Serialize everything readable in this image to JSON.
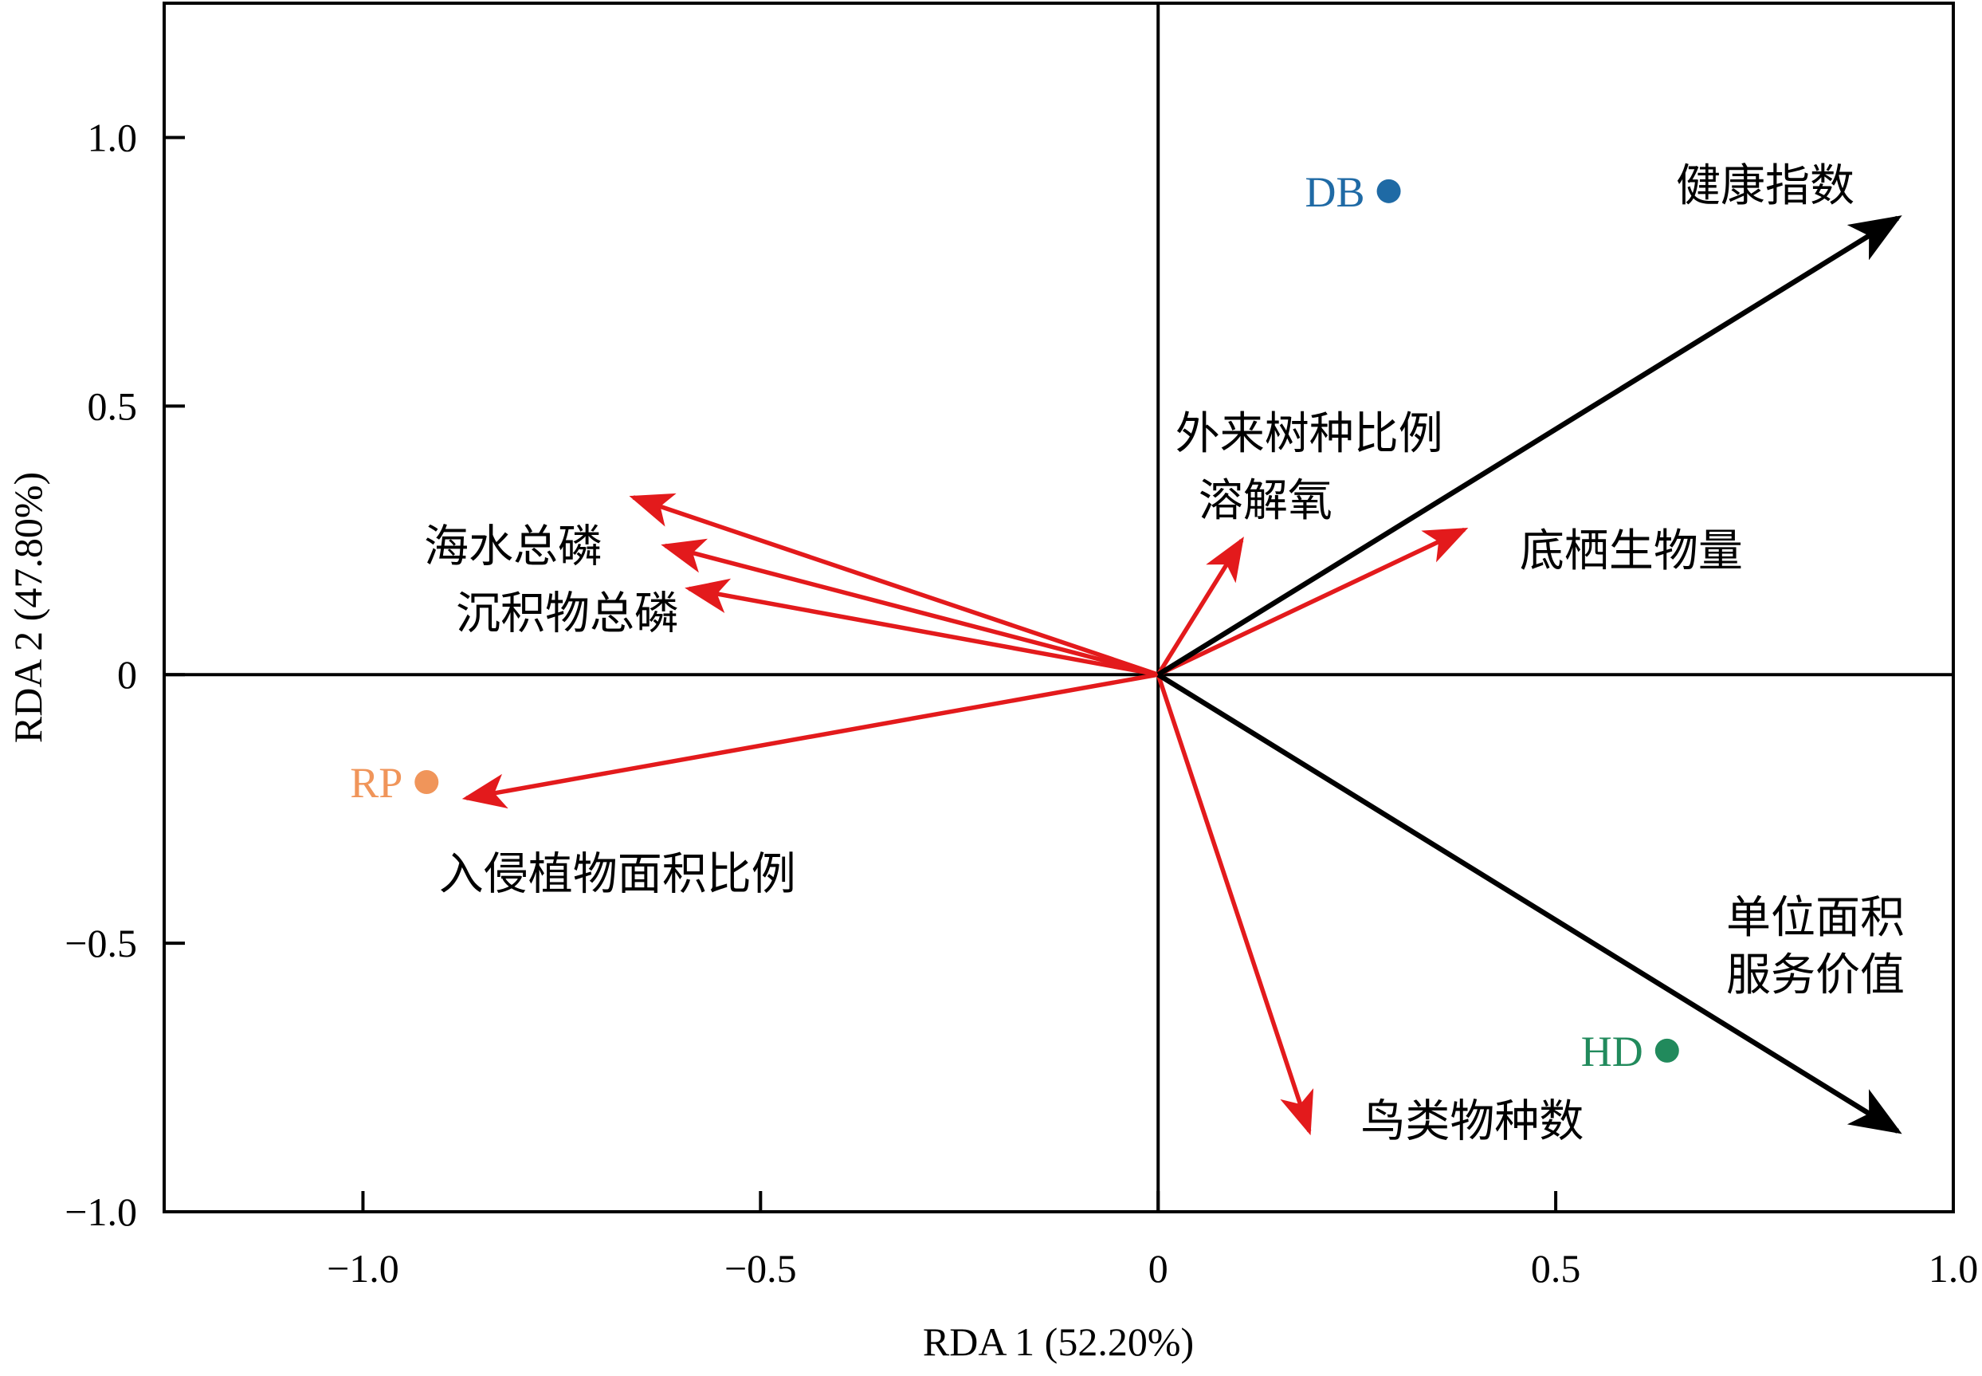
{
  "chart_data": {
    "type": "scatter",
    "subtype": "rda-biplot",
    "title": "",
    "xlabel": "RDA 1 (52.20%)",
    "ylabel": "RDA 2 (47.80%)",
    "xlim": [
      -1.25,
      1.0
    ],
    "ylim": [
      -1.0,
      1.25
    ],
    "x_ticks": [
      -1.0,
      -0.5,
      0,
      0.5,
      1.0
    ],
    "x_tick_labels": [
      "−1.0",
      "−0.5",
      "0",
      "0.5",
      "1.0"
    ],
    "y_ticks": [
      1.0,
      0.5,
      0,
      -0.5,
      -1.0
    ],
    "y_tick_labels": [
      "1.0",
      "0.5",
      "0",
      "−0.5",
      "−1.0"
    ],
    "grid": false,
    "legend": "none",
    "origin_lines": true,
    "sites": [
      {
        "label": "DB",
        "x": 0.29,
        "y": 0.9,
        "color": "#1f6aa5"
      },
      {
        "label": "RP",
        "x": -0.92,
        "y": -0.2,
        "color": "#f0955a"
      },
      {
        "label": "HD",
        "x": 0.64,
        "y": -0.7,
        "color": "#218a5c"
      }
    ],
    "response_vectors": [
      {
        "label": "健康指数",
        "x": 0.93,
        "y": 0.85,
        "color": "#000000"
      },
      {
        "label": "单位面积服务价值",
        "lines": [
          "单位面积",
          "服务价值"
        ],
        "x": 0.93,
        "y": -0.85,
        "color": "#000000"
      }
    ],
    "explanatory_vectors": [
      {
        "label": "外来树种比例",
        "x": -0.66,
        "y": 0.33,
        "color": "#e31a1c"
      },
      {
        "label": "海水总磷",
        "x": -0.62,
        "y": 0.24,
        "color": "#e31a1c"
      },
      {
        "label": "沉积物总磷",
        "x": -0.59,
        "y": 0.16,
        "color": "#e31a1c"
      },
      {
        "label": "入侵植物面积比例",
        "x": -0.87,
        "y": -0.23,
        "color": "#e31a1c"
      },
      {
        "label": "溶解氧",
        "x": 0.105,
        "y": 0.25,
        "color": "#e31a1c"
      },
      {
        "label": "底栖生物量",
        "x": 0.385,
        "y": 0.27,
        "color": "#e31a1c"
      },
      {
        "label": "鸟类物种数",
        "x": 0.19,
        "y": -0.85,
        "color": "#e31a1c"
      }
    ]
  }
}
